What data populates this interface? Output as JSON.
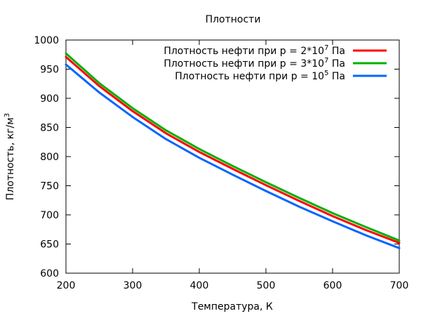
{
  "chart_data": {
    "type": "line",
    "title": "Плотности",
    "xlabel": "Температура, К",
    "ylabel": {
      "base": "Плотность, кг/м",
      "sup": "3"
    },
    "xlim": [
      200,
      700
    ],
    "ylim": [
      600,
      1000
    ],
    "x_ticks": [
      200,
      300,
      400,
      500,
      600,
      700
    ],
    "y_ticks": [
      600,
      650,
      700,
      750,
      800,
      850,
      900,
      950,
      1000
    ],
    "grid": false,
    "legend_position": "top-right",
    "x": [
      200,
      250,
      300,
      350,
      400,
      450,
      500,
      550,
      600,
      650,
      700
    ],
    "series": [
      {
        "name": {
          "base": "Плотность нефти при p = 2*10",
          "sup": "7",
          "tail": " Па"
        },
        "color": "#ff0000",
        "values": [
          971,
          921,
          878,
          840,
          808,
          779,
          751,
          724,
          698,
          674,
          652
        ]
      },
      {
        "name": {
          "base": "Плотность нефти при p = 3*10",
          "sup": "7",
          "tail": " Па"
        },
        "color": "#00b000",
        "values": [
          977,
          926,
          883,
          845,
          813,
          784,
          756,
          729,
          703,
          679,
          656
        ]
      },
      {
        "name": {
          "base": "Плотность нефти при p = 10",
          "sup": "5",
          "tail": " Па"
        },
        "color": "#0066ff",
        "values": [
          958,
          910,
          868,
          830,
          798,
          769,
          741,
          714,
          689,
          665,
          643
        ]
      }
    ]
  }
}
